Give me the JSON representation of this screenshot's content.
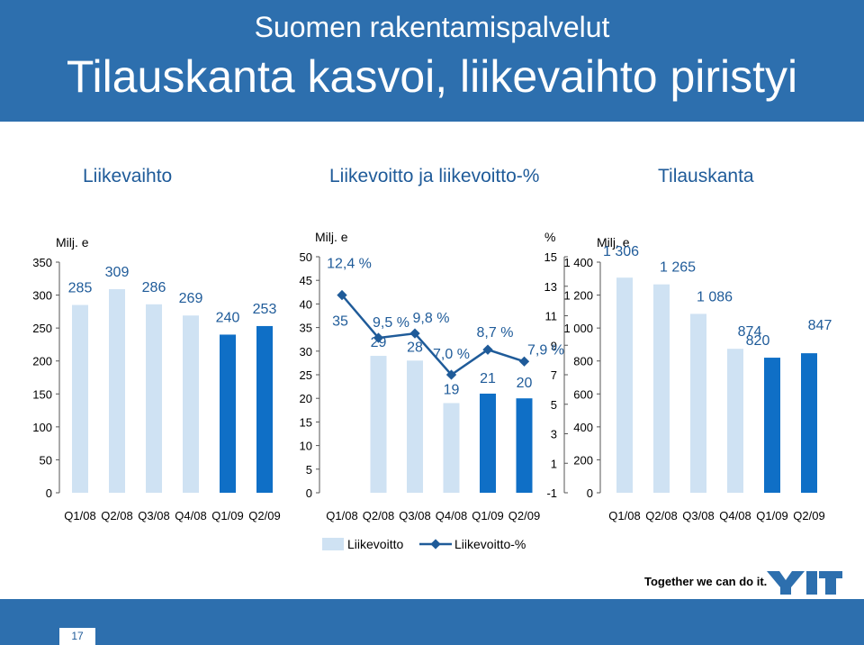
{
  "header": {
    "subtitle": "Suomen rakentamispalvelut",
    "title": "Tilauskanta kasvoi, liikevaihto piristyi"
  },
  "chart_titles": {
    "left": "Liikevaihto",
    "middle": "Liikevoitto ja liikevoitto-%",
    "right": "Tilauskanta"
  },
  "footer": {
    "slogan": "Together we can do it.",
    "page_number": "17",
    "logo_text": "YIT"
  },
  "colors": {
    "header_bg": "#2d6fae",
    "bar_light": "#cfe2f3",
    "bar_dark": "#0f6fc6",
    "line": "#1f5b99",
    "title_blue": "#1f5b99"
  },
  "chart_data": [
    {
      "type": "bar",
      "unit_label": "Milj. e",
      "categories": [
        "Q1/08",
        "Q2/08",
        "Q3/08",
        "Q4/08",
        "Q1/09",
        "Q2/09"
      ],
      "values": [
        285,
        309,
        286,
        269,
        240,
        253
      ],
      "value_labels": [
        "285",
        "309",
        "286",
        "269",
        "240",
        "253"
      ],
      "highlight": [
        false,
        false,
        false,
        false,
        true,
        true
      ],
      "ylim": [
        0,
        350
      ],
      "yticks": [
        0,
        50,
        100,
        150,
        200,
        250,
        300,
        350
      ],
      "ytick_labels": [
        "0",
        "50",
        "100",
        "150",
        "200",
        "250",
        "300",
        "350"
      ]
    },
    {
      "type": "bar+line",
      "unit_label": "Milj. e",
      "unit_label_right": "%",
      "categories": [
        "Q1/08",
        "Q2/08",
        "Q3/08",
        "Q4/08",
        "Q1/09",
        "Q2/09"
      ],
      "series": [
        {
          "name": "Liikevoitto",
          "values": [
            35,
            29,
            28,
            19,
            21,
            20
          ],
          "value_labels": [
            "35",
            "29",
            "28",
            "19",
            "21",
            "20"
          ],
          "highlight": [
            false,
            false,
            false,
            false,
            true,
            true
          ]
        },
        {
          "name": "Liikevoitto-%",
          "values": [
            12.4,
            9.5,
            9.8,
            7.0,
            8.7,
            7.9
          ],
          "value_labels": [
            "12,4 %",
            "9,5 %",
            "9,8 %",
            "7,0 %",
            "8,7 %",
            "7,9 %"
          ]
        }
      ],
      "ylim": [
        0,
        50
      ],
      "yticks": [
        0,
        5,
        10,
        15,
        20,
        25,
        30,
        35,
        40,
        45,
        50
      ],
      "ytick_labels": [
        "0",
        "5",
        "10",
        "15",
        "20",
        "25",
        "30",
        "35",
        "40",
        "45",
        "50"
      ],
      "y2lim": [
        -1,
        15
      ],
      "y2ticks": [
        -1,
        1,
        3,
        5,
        7,
        9,
        11,
        13,
        15
      ],
      "y2tick_labels": [
        "-1",
        "1",
        "3",
        "5",
        "7",
        "9",
        "11",
        "13",
        "15"
      ],
      "legend": [
        "Liikevoitto",
        "Liikevoitto-%"
      ]
    },
    {
      "type": "bar",
      "unit_label": "Milj. e",
      "categories": [
        "Q1/08",
        "Q2/08",
        "Q3/08",
        "Q4/08",
        "Q1/09",
        "Q2/09"
      ],
      "values": [
        1306,
        1265,
        1086,
        874,
        820,
        847
      ],
      "value_labels": [
        "1 306",
        "1 265",
        "1 086",
        "874",
        "820",
        "847"
      ],
      "highlight": [
        false,
        false,
        false,
        false,
        true,
        true
      ],
      "ylim": [
        0,
        1400
      ],
      "yticks": [
        0,
        200,
        400,
        600,
        800,
        1000,
        1200,
        1400
      ],
      "ytick_labels": [
        "0",
        "200",
        "400",
        "600",
        "800",
        "1 000",
        "1 200",
        "1 400"
      ]
    }
  ]
}
